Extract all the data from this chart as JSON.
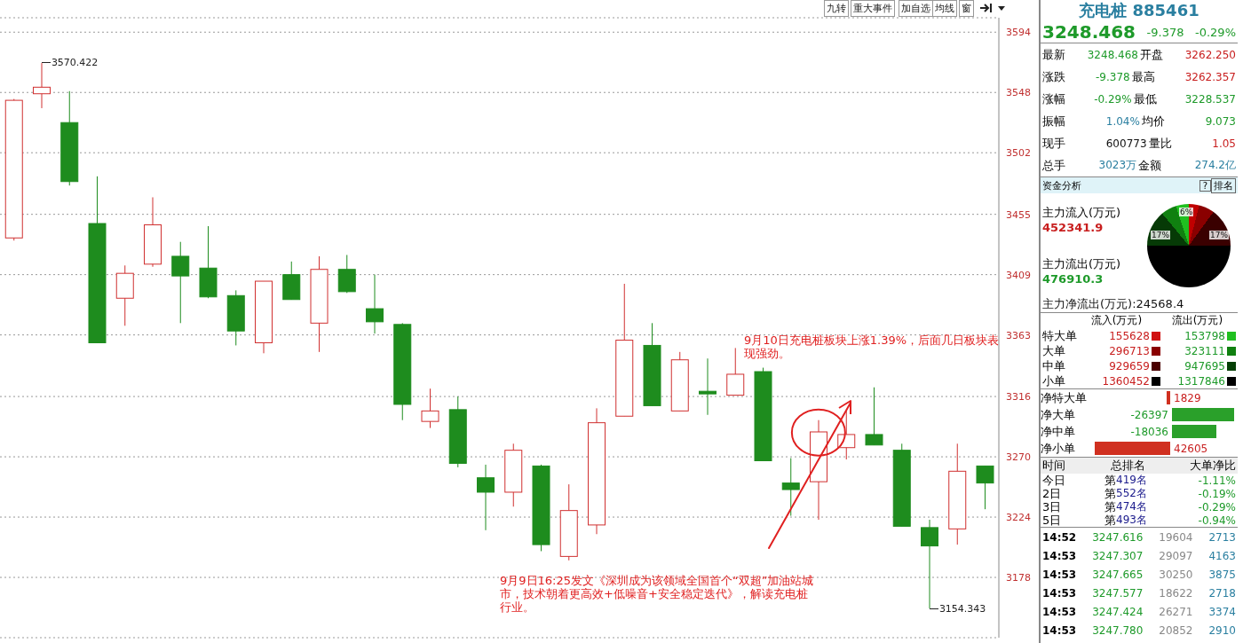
{
  "chart_data": [
    {
      "type": "candlestick",
      "categories": [
        null,
        null,
        null,
        null,
        null,
        null,
        null,
        null,
        null,
        null,
        null,
        null,
        null,
        null,
        null,
        null,
        null,
        null,
        null,
        null,
        null,
        null,
        null,
        null,
        null,
        null,
        null,
        null,
        null,
        null,
        null,
        null,
        null,
        null,
        null,
        null
      ],
      "ohlc": [
        [
          3437,
          3543,
          3435,
          3542
        ],
        [
          3547,
          3570.422,
          3536,
          3552
        ],
        [
          3525,
          3549,
          3477,
          3480
        ],
        [
          3448,
          3484,
          3357,
          3357
        ],
        [
          3391,
          3416,
          3370,
          3410
        ],
        [
          3417,
          3468,
          3415,
          3447
        ],
        [
          3423,
          3434,
          3372,
          3408
        ],
        [
          3414,
          3446,
          3391,
          3392
        ],
        [
          3393,
          3397,
          3355,
          3366
        ],
        [
          3357,
          3404,
          3349,
          3404
        ],
        [
          3409,
          3419,
          3390,
          3390
        ],
        [
          3372,
          3423,
          3350,
          3413
        ],
        [
          3413,
          3424,
          3395,
          3396
        ],
        [
          3383,
          3409,
          3364,
          3373
        ],
        [
          3371,
          3372,
          3298,
          3310
        ],
        [
          3297,
          3322,
          3292,
          3305
        ],
        [
          3306,
          3316,
          3262,
          3265
        ],
        [
          3254,
          3264,
          3214,
          3243
        ],
        [
          3243,
          3280,
          3232,
          3275
        ],
        [
          3263,
          3264,
          3198,
          3203
        ],
        [
          3194,
          3249,
          3191,
          3229
        ],
        [
          3218,
          3307,
          3211,
          3296
        ],
        [
          3301,
          3402,
          3301,
          3359
        ],
        [
          3355,
          3372,
          3309,
          3309
        ],
        [
          3305,
          3350,
          3305,
          3344
        ],
        [
          3320,
          3345,
          3302,
          3318
        ],
        [
          3317,
          3353,
          3317,
          3333
        ],
        [
          3335,
          3338,
          3267,
          3267
        ],
        [
          3250,
          3269,
          3225,
          3245
        ],
        [
          3251,
          3298,
          3222,
          3289
        ],
        [
          3277,
          3305,
          3268,
          3287
        ],
        [
          3287,
          3323,
          3279,
          3279
        ],
        [
          3275,
          3280,
          3217,
          3217
        ],
        [
          3216,
          3222,
          3154.343,
          3202
        ],
        [
          3215,
          3280,
          3203,
          3259
        ],
        [
          3263,
          3263,
          3230,
          3250
        ]
      ],
      "colors": [
        "#d03030",
        "#d03030",
        "#1e8c1e",
        "#1e8c1e",
        "#d03030",
        "#d03030",
        "#1e8c1e",
        "#1e8c1e",
        "#1e8c1e",
        "#d03030",
        "#1e8c1e",
        "#d03030",
        "#1e8c1e",
        "#1e8c1e",
        "#1e8c1e",
        "#d03030",
        "#1e8c1e",
        "#1e8c1e",
        "#d03030",
        "#1e8c1e",
        "#d03030",
        "#d03030",
        "#d03030",
        "#1e8c1e",
        "#d03030",
        "#1e8c1e",
        "#d03030",
        "#1e8c1e",
        "#1e8c1e",
        "#d03030",
        "#d03030",
        "#1e8c1e",
        "#1e8c1e",
        "#1e8c1e",
        "#d03030",
        "#1e8c1e"
      ],
      "ylim": [
        3132,
        3605
      ],
      "yticks": [
        3178,
        3224,
        3270,
        3316,
        3363,
        3409,
        3455,
        3502,
        3548,
        3594
      ],
      "grid": "y",
      "tick_labels": "y",
      "annotations": [
        "3570.422",
        "3154.343",
        "9月10日充电桩板块上涨1.39%，后面几日板块表现强劲。",
        "9月9日16:25发文《深圳成为该领域全国首个“双超”加油站城市，技术朝着更高效+低噪音+安全稳定迭代》，解读充电桩行业。",
        "九转",
        "重大事件",
        "加自选",
        "均线",
        "窗"
      ]
    },
    {
      "type": "other",
      "annotations": [
        "充电桩 885461",
        "3248.468",
        "-9.378",
        "-0.29%",
        "最新",
        "3248.468",
        "开盘",
        "3262.250",
        "涨跌",
        "-9.378",
        "最高",
        "3262.357",
        "涨幅",
        "-0.29%",
        "最低",
        "3228.537",
        "振幅",
        "1.04%",
        "均价",
        "9.073",
        "现手",
        "600773",
        "量比",
        "1.05",
        "总手",
        "3023万",
        "金额",
        "274.2亿",
        "资金分析",
        "?",
        "排名",
        "主力流入(万元)",
        "452341.9",
        "主力流出(万元)",
        "476910.3",
        "6%",
        "17%",
        "17%",
        "主力净流出(万元):24568.4",
        "流入(万元)",
        "流出(万元)",
        "特大单",
        "155628",
        "153798",
        "大单",
        "296713",
        "323111",
        "中单",
        "929659",
        "947695",
        "小单",
        "1360452",
        "1317846",
        "净特大单",
        "1829",
        "净大单",
        "-26397",
        "净中单",
        "-18036",
        "净小单",
        "42605",
        "时间",
        "总排名",
        "大单净比",
        "今日",
        "第",
        "419名",
        "-1.11%",
        "2日",
        "第",
        "552名",
        "-0.19%",
        "3日",
        "第",
        "474名",
        "-0.29%",
        "5日",
        "第",
        "493名",
        "-0.94%",
        "14:52",
        "3247.616",
        "19604",
        "2713",
        "14:53",
        "3247.307",
        "29097",
        "4163",
        "14:53",
        "3247.665",
        "30250",
        "3875",
        "14:53",
        "3247.577",
        "18622",
        "2718",
        "14:53",
        "3247.424",
        "26271",
        "3374",
        "14:53",
        "3247.780",
        "20852",
        "2910"
      ]
    }
  ]
}
